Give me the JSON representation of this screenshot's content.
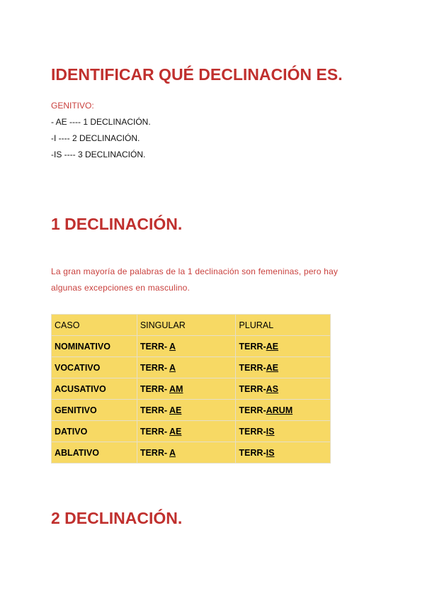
{
  "title": "IDENTIFICAR QUÉ DECLINACIÓN ES.",
  "genitivo_label": "GENITIVO:",
  "rules": [
    "- AE ---- 1 DECLINACIÓN.",
    "-I ---- 2 DECLINACIÓN.",
    "-IS ---- 3 DECLINACIÓN."
  ],
  "section1": {
    "heading": "1 DECLINACIÓN.",
    "paragraph": "La gran mayoría de palabras de la 1 declinación son femeninas, pero hay algunas excepciones en masculino."
  },
  "table": {
    "headers": [
      "CASO",
      "SINGULAR",
      "PLURAL"
    ],
    "rows": [
      {
        "caso": "NOMINATIVO",
        "sg_stem": "TERR- ",
        "sg_end": "A",
        "pl_stem": "TERR-",
        "pl_end": "AE"
      },
      {
        "caso": "VOCATIVO",
        "sg_stem": "TERR- ",
        "sg_end": "A",
        "pl_stem": "TERR-",
        "pl_end": "AE"
      },
      {
        "caso": "ACUSATIVO",
        "sg_stem": "TERR- ",
        "sg_end": "AM",
        "pl_stem": "TERR-",
        "pl_end": "AS"
      },
      {
        "caso": "GENITIVO",
        "sg_stem": "TERR- ",
        "sg_end": "AE",
        "pl_stem": "TERR-",
        "pl_end": "ARUM"
      },
      {
        "caso": "DATIVO",
        "sg_stem": "TERR- ",
        "sg_end": "AE",
        "pl_stem": "TERR-",
        "pl_end": "IS"
      },
      {
        "caso": "ABLATIVO",
        "sg_stem": "TERR- ",
        "sg_end": "A",
        "pl_stem": "TERR-",
        "pl_end": "IS"
      }
    ]
  },
  "section2": {
    "heading": "2 DECLINACIÓN."
  },
  "colors": {
    "heading": "#c0302e",
    "table_bg": "#f7d964"
  }
}
